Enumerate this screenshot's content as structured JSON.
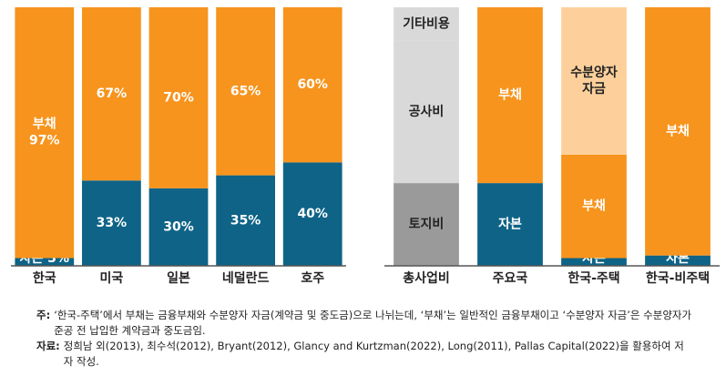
{
  "chart_data": [
    {
      "type": "bar",
      "stacked": true,
      "categories": [
        "한국",
        "미국",
        "일본",
        "네덜란드",
        "호주"
      ],
      "ylim": [
        0,
        100
      ],
      "series": [
        {
          "name": "자본",
          "color": "#0e6387",
          "values": [
            3,
            33,
            30,
            35,
            40
          ],
          "value_labels": [
            "자본 3%",
            "33%",
            "30%",
            "35%",
            "40%"
          ]
        },
        {
          "name": "부채",
          "color": "#f7941d",
          "values": [
            97,
            67,
            70,
            65,
            60
          ],
          "value_labels": [
            "부채\n97%",
            "67%",
            "70%",
            "65%",
            "60%"
          ]
        }
      ]
    },
    {
      "type": "bar",
      "stacked": true,
      "categories": [
        "총사업비",
        "주요국",
        "한국-주택",
        "한국-비주택"
      ],
      "ylim": [
        0,
        100
      ],
      "series": [
        {
          "name": "토지비",
          "color": "#9a9a9a",
          "values": [
            32,
            null,
            null,
            null
          ]
        },
        {
          "name": "공사비",
          "color": "#d9d9d9",
          "values": [
            55,
            null,
            null,
            null
          ]
        },
        {
          "name": "기타비용",
          "color": "#d9d9d9",
          "values": [
            13,
            null,
            null,
            null
          ]
        },
        {
          "name": "자본",
          "color": "#0e6387",
          "values": [
            null,
            32,
            3,
            4
          ]
        },
        {
          "name": "부채",
          "color": "#f7941d",
          "values": [
            null,
            68,
            40,
            96
          ]
        },
        {
          "name": "수분양자 자금",
          "color": "#fdd09b",
          "values": [
            null,
            null,
            57,
            null
          ]
        }
      ]
    }
  ],
  "notes": [
    {
      "label": "주:",
      "text": "‘한국-주택’에서 부채는 금융부채와 수분양자 자금(계약금 및 중도금)으로 나뉘는데, ‘부채’는 일반적인 금융부채이고 ‘수분양자 자금’은 수분양자가 준공 전 납입한 계약금과 중도금임."
    },
    {
      "label": "자료:",
      "text": "정희남 외(2013), 최수석(2012), Bryant(2012), Glancy and Kurtzman(2022), Long(2011), Pallas Capital(2022)을 활용하여 저자 작성."
    }
  ]
}
